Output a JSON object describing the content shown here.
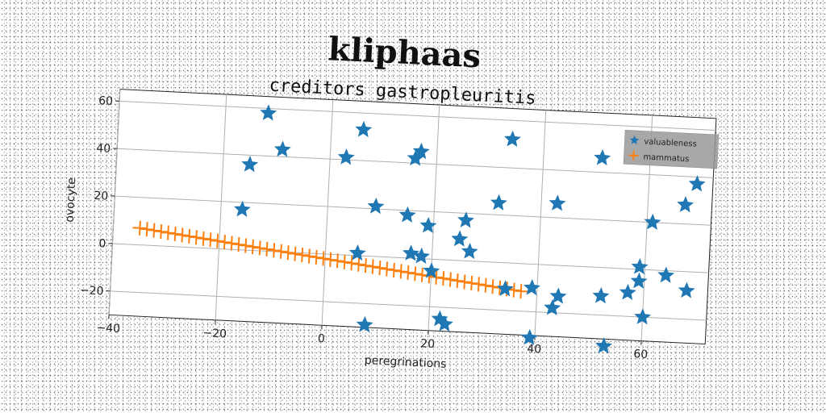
{
  "chart_data": {
    "type": "scatter",
    "title": "kliphaas",
    "subtitle": "creditors gastropleuritis",
    "xlabel": "peregrinations",
    "ylabel": "ovocyte",
    "xlim": [
      -40,
      72
    ],
    "ylim": [
      -30,
      65
    ],
    "xticks": [
      -40,
      -20,
      0,
      20,
      40,
      60
    ],
    "yticks": [
      -20,
      0,
      20,
      40,
      60
    ],
    "xtick_labels": [
      "−40",
      "−20",
      "0",
      "20",
      "40",
      "60"
    ],
    "ytick_labels": [
      "−20",
      "0",
      "20",
      "40",
      "60"
    ],
    "grid": true,
    "legend_position": "top-right",
    "series": [
      {
        "name": "valuableness",
        "marker": "star",
        "color": "#1f77b4",
        "points": [
          [
            -12,
            58
          ],
          [
            -9,
            43
          ],
          [
            -15,
            36
          ],
          [
            -16,
            17
          ],
          [
            6,
            53
          ],
          [
            3,
            41
          ],
          [
            9,
            21
          ],
          [
            6,
            1
          ],
          [
            8,
            -29
          ],
          [
            15,
            18
          ],
          [
            16,
            42
          ],
          [
            17,
            45
          ],
          [
            16,
            2
          ],
          [
            18,
            1
          ],
          [
            19,
            14
          ],
          [
            20,
            -5
          ],
          [
            22,
            -25
          ],
          [
            23,
            -27
          ],
          [
            25,
            9
          ],
          [
            26,
            17
          ],
          [
            27,
            4
          ],
          [
            32,
            25
          ],
          [
            34,
            52
          ],
          [
            34,
            -11
          ],
          [
            39,
            -10
          ],
          [
            39,
            -31
          ],
          [
            43,
            26
          ],
          [
            44,
            -13
          ],
          [
            43,
            -18
          ],
          [
            51,
            46
          ],
          [
            52,
            -12
          ],
          [
            53,
            -33
          ],
          [
            57,
            -10
          ],
          [
            59,
            1
          ],
          [
            59,
            -5
          ],
          [
            60,
            -20
          ],
          [
            61,
            20
          ],
          [
            64,
            -2
          ],
          [
            67,
            28
          ],
          [
            68,
            -8
          ],
          [
            69,
            37
          ]
        ]
      },
      {
        "name": "mammatus",
        "marker": "plus",
        "color": "#ff7f0e",
        "x_range": [
          -35,
          37
        ],
        "count": 55,
        "line": {
          "slope": -0.26,
          "intercept": -2
        }
      }
    ]
  }
}
